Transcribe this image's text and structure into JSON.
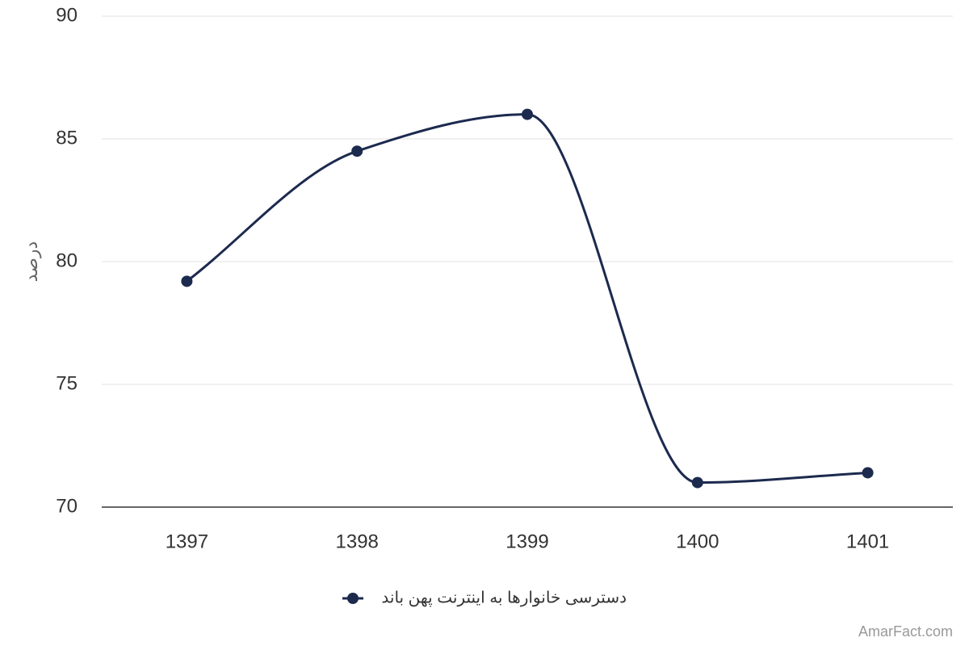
{
  "chart_data": {
    "type": "line",
    "y_label": "درصد",
    "categories": [
      "1397",
      "1398",
      "1399",
      "1400",
      "1401"
    ],
    "series": [
      {
        "name": "دسترسی خانوارها به اینترنت پهن باند",
        "color": "#1c2a4e",
        "values": [
          79.2,
          84.5,
          86.0,
          71.0,
          71.4
        ]
      }
    ],
    "ylim": [
      70,
      90
    ],
    "yticks": [
      70,
      75,
      80,
      85,
      90
    ],
    "grid": true,
    "smooth": true,
    "legend": "bottom",
    "credit": "AmarFact.com"
  }
}
